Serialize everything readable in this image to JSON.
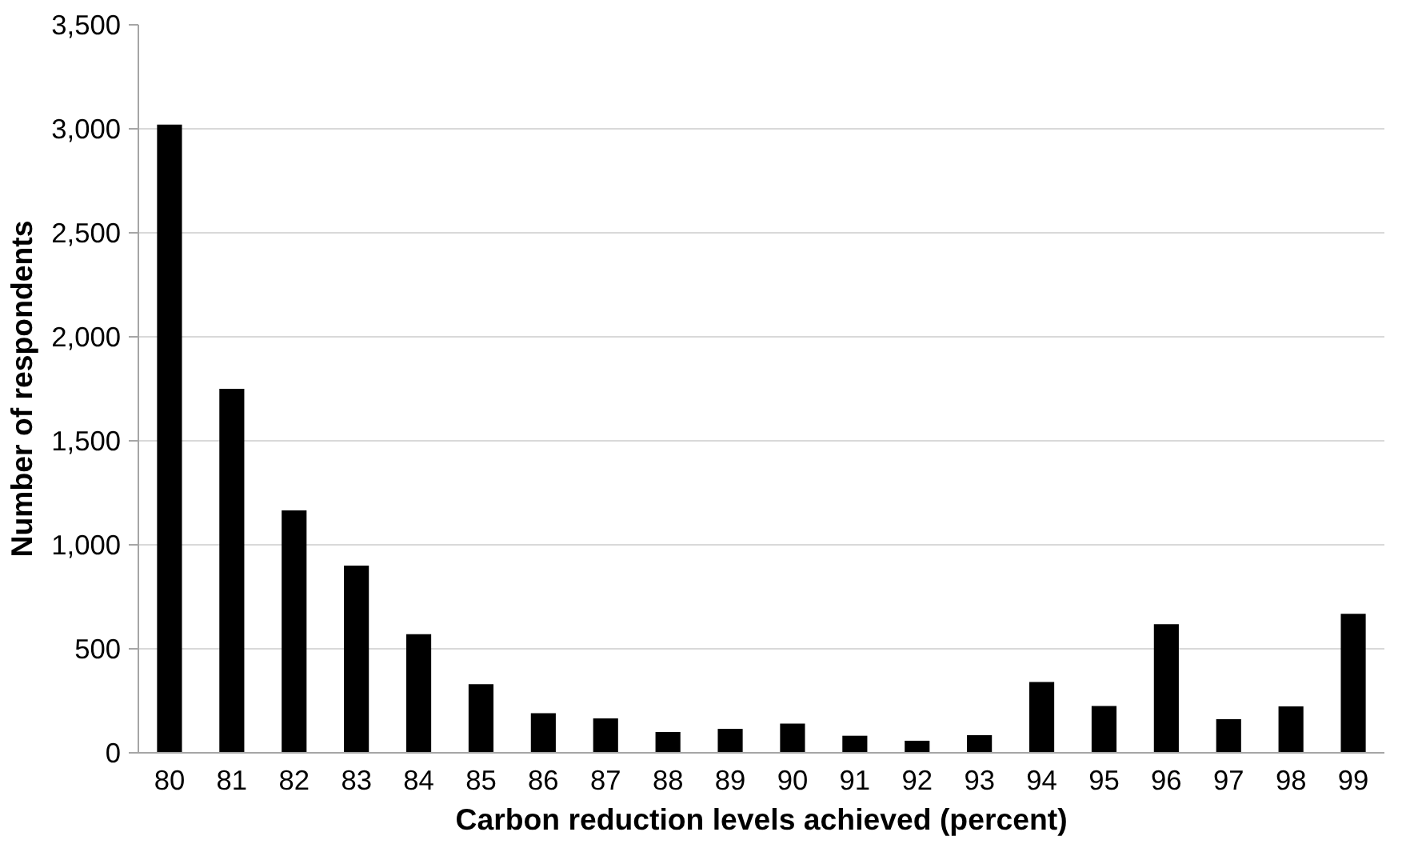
{
  "chart_data": {
    "type": "bar",
    "xlabel": "Carbon reduction levels achieved (percent)",
    "ylabel": "Number of respondents",
    "categories": [
      "80",
      "81",
      "82",
      "83",
      "84",
      "85",
      "86",
      "87",
      "88",
      "89",
      "90",
      "91",
      "92",
      "93",
      "94",
      "95",
      "96",
      "97",
      "98",
      "99"
    ],
    "values": [
      3020,
      1750,
      1165,
      900,
      570,
      330,
      190,
      165,
      100,
      115,
      140,
      82,
      58,
      85,
      340,
      225,
      618,
      162,
      223,
      668
    ],
    "color": "#000000",
    "ylim": [
      0,
      3500
    ],
    "yticks": [
      0,
      {
        "value": 500,
        "label": "500"
      },
      {
        "value": 1000,
        "label": "1,000"
      },
      {
        "value": 1500,
        "label": "1,500"
      },
      {
        "value": 2000,
        "label": "2,000"
      },
      {
        "value": 2500,
        "label": "2,500"
      },
      {
        "value": 3000,
        "label": "3,000"
      },
      {
        "value": 3500,
        "label": "3,500"
      }
    ],
    "grid": "y"
  }
}
